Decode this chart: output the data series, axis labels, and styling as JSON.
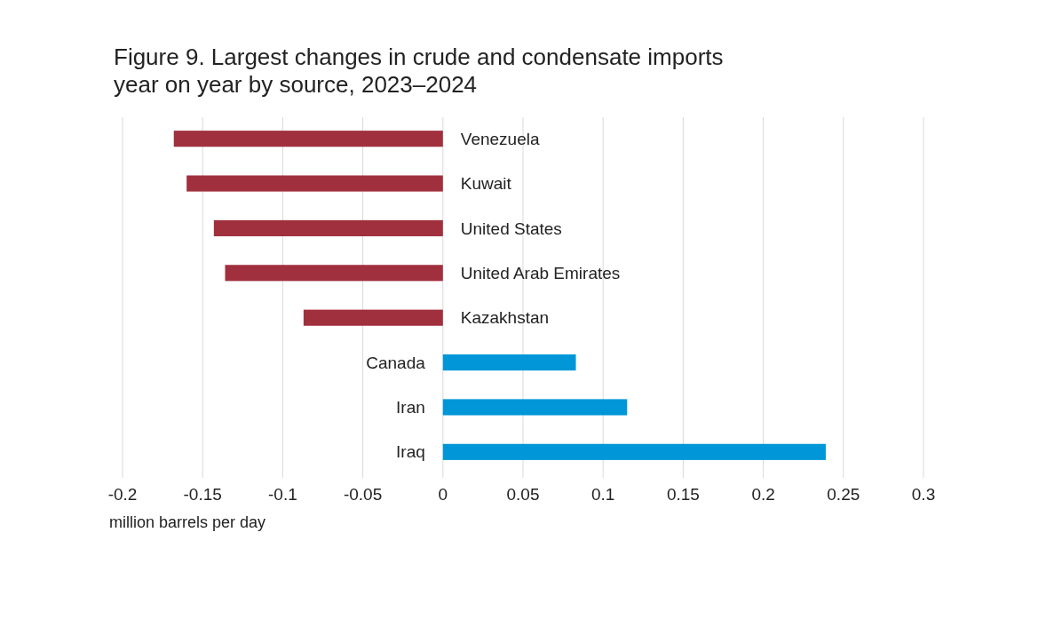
{
  "chart_data": {
    "type": "bar",
    "orientation": "horizontal",
    "title": "Figure 9. Largest changes in crude and condensate imports year on year by source, 2023–2024",
    "xlabel": "million barrels per day",
    "categories": [
      "Venezuela",
      "Kuwait",
      "United States",
      "United Arab Emirates",
      "Kazakhstan",
      "Canada",
      "Iran",
      "Iraq"
    ],
    "values": [
      -0.168,
      -0.16,
      -0.143,
      -0.136,
      -0.087,
      0.083,
      0.115,
      0.239
    ],
    "colors": [
      "#a1303f",
      "#a1303f",
      "#a1303f",
      "#a1303f",
      "#a1303f",
      "#0096d7",
      "#0096d7",
      "#0096d7"
    ],
    "xlim": [
      -0.2,
      0.3
    ],
    "xticks": [
      -0.2,
      -0.15,
      -0.1,
      -0.05,
      0,
      0.05,
      0.1,
      0.15,
      0.2,
      0.25,
      0.3
    ],
    "grid": "x"
  }
}
